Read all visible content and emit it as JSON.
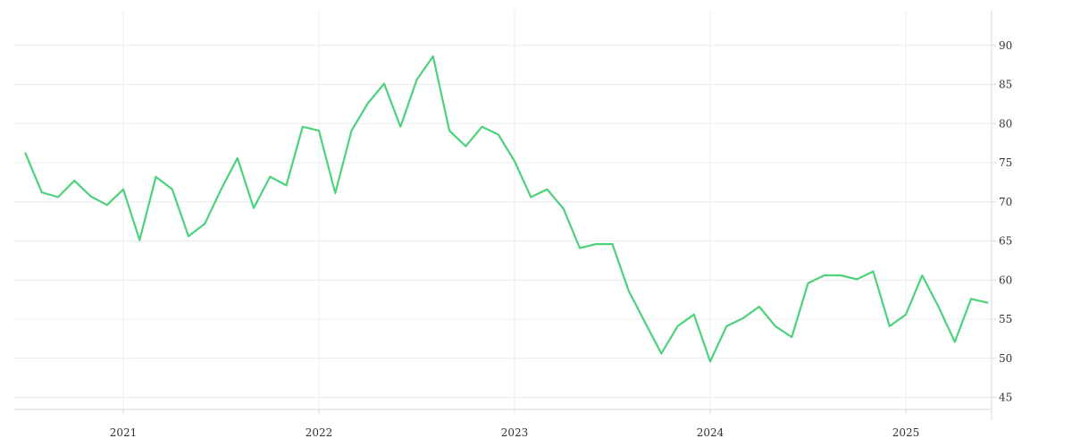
{
  "chart_data": {
    "type": "line",
    "title": "",
    "xlabel": "",
    "ylabel": "",
    "x_ticks": [
      "2021",
      "2022",
      "2023",
      "2024",
      "2025"
    ],
    "y_ticks": [
      45,
      50,
      55,
      60,
      65,
      70,
      75,
      80,
      85,
      90
    ],
    "ylim": [
      43,
      93
    ],
    "y_axis_position": "right",
    "grid": true,
    "legend": "none",
    "line_color": "#4cd27a",
    "series": [
      {
        "x": [
          "2020-07",
          "2020-08",
          "2020-09",
          "2020-10",
          "2020-11",
          "2020-12",
          "2021-01",
          "2021-02",
          "2021-03",
          "2021-04",
          "2021-05",
          "2021-06",
          "2021-07",
          "2021-08",
          "2021-09",
          "2021-10",
          "2021-11",
          "2021-12",
          "2022-01",
          "2022-02",
          "2022-03",
          "2022-04",
          "2022-05",
          "2022-06",
          "2022-07",
          "2022-08",
          "2022-09",
          "2022-10",
          "2022-11",
          "2022-12",
          "2023-01",
          "2023-02",
          "2023-03",
          "2023-04",
          "2023-05",
          "2023-06",
          "2023-07",
          "2023-08",
          "2023-09",
          "2023-10",
          "2023-11",
          "2023-12",
          "2024-01",
          "2024-02",
          "2024-03",
          "2024-04",
          "2024-05",
          "2024-06",
          "2024-07",
          "2024-08",
          "2024-09",
          "2024-10",
          "2024-11",
          "2024-12",
          "2025-01",
          "2025-02",
          "2025-03",
          "2025-04",
          "2025-05",
          "2025-06"
        ],
        "values": [
          76.2,
          71.2,
          70.6,
          72.7,
          70.7,
          69.6,
          71.6,
          65.1,
          73.2,
          71.6,
          65.6,
          67.2,
          71.6,
          75.6,
          69.2,
          73.2,
          72.1,
          79.6,
          79.1,
          71.1,
          79.1,
          82.6,
          85.1,
          79.6,
          85.6,
          88.6,
          79.1,
          77.1,
          79.6,
          78.6,
          75.2,
          70.6,
          71.6,
          69.1,
          64.1,
          64.6,
          64.6,
          58.6,
          54.6,
          50.6,
          54.1,
          55.6,
          49.6,
          54.1,
          55.1,
          56.6,
          54.1,
          52.7,
          59.6,
          60.6,
          60.6,
          60.1,
          61.1,
          54.1,
          55.6,
          60.6,
          56.6,
          52.1,
          57.6,
          57.1
        ]
      }
    ]
  }
}
